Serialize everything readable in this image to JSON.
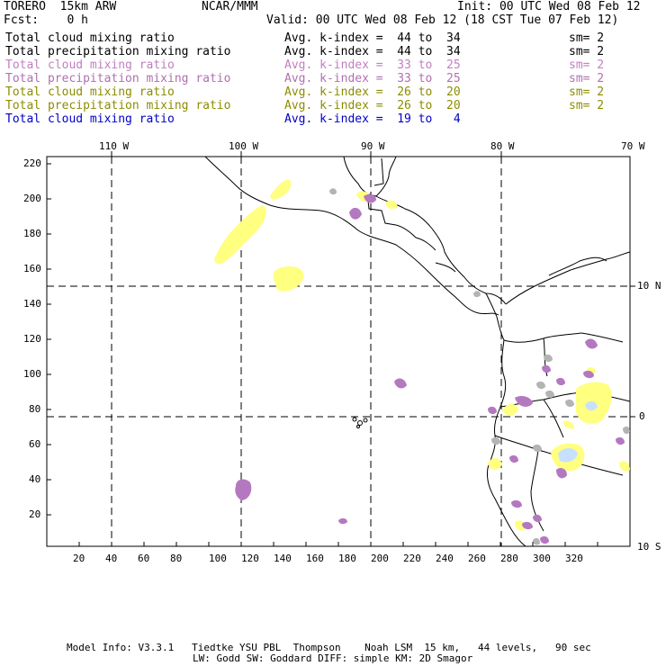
{
  "header": {
    "model": "TORERO  15km ARW",
    "org": "NCAR/MMM",
    "init": "Init: 00 UTC Wed 08 Feb 12",
    "fcst": "Fcst:    0 h",
    "valid": "Valid: 00 UTC Wed 08 Feb 12 (18 CST Tue 07 Feb 12)"
  },
  "legend": [
    {
      "field": "Total cloud mixing ratio",
      "avg": "Avg. k-index =  44 to  34",
      "sm": "sm= 2",
      "color": "#000000"
    },
    {
      "field": "Total precipitation mixing ratio",
      "avg": "Avg. k-index =  44 to  34",
      "sm": "sm= 2",
      "color": "#000000"
    },
    {
      "field": "Total cloud mixing ratio",
      "avg": "Avg. k-index =  33 to  25",
      "sm": "sm= 2",
      "color": "#c080c0"
    },
    {
      "field": "Total precipitation mixing ratio",
      "avg": "Avg. k-index =  33 to  25",
      "sm": "sm= 2",
      "color": "#b070b0"
    },
    {
      "field": "Total cloud mixing ratio",
      "avg": "Avg. k-index =  26 to  20",
      "sm": "sm= 2",
      "color": "#8c8c00"
    },
    {
      "field": "Total precipitation mixing ratio",
      "avg": "Avg. k-index =  26 to  20",
      "sm": "sm= 2",
      "color": "#8c8c00"
    },
    {
      "field": "Total cloud mixing ratio",
      "avg": "Avg. k-index =  19 to   4",
      "sm": "",
      "color": "#0000c8"
    }
  ],
  "top_lon_labels": [
    "110 W",
    "100 W",
    "90 W",
    "80 W",
    "70 W"
  ],
  "right_lat_labels": [
    "10 N",
    "0",
    "10 S"
  ],
  "y_ticks": [
    "220",
    "200",
    "180",
    "160",
    "140",
    "120",
    "100",
    "80",
    "60",
    "40",
    "20"
  ],
  "x_ticks": [
    "20",
    "40",
    "60",
    "80",
    "100",
    "120",
    "140",
    "160",
    "180",
    "200",
    "220",
    "240",
    "260",
    "280",
    "300",
    "320"
  ],
  "footer": {
    "line1": "Model Info: V3.3.1   Tiedtke YSU PBL  Thompson    Noah LSM  15 km,   44 levels,   90 sec",
    "line2": "LW: Godd SW: Goddard DIFF: simple KM: 2D Smagor"
  },
  "colors": {
    "gray_cloud": "#b4b4b4",
    "purple_cloud": "#b478c0",
    "yellow_cloud": "#ffff80",
    "light_blue": "#c8e0ff"
  }
}
